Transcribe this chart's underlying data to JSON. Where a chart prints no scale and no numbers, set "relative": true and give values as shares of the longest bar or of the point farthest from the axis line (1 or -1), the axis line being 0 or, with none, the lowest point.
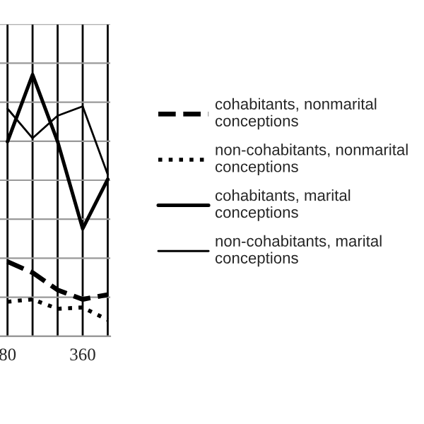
{
  "chart_data": {
    "type": "line",
    "relative": true,
    "categories": [
      "80",
      null,
      null,
      "360",
      null
    ],
    "series": [
      {
        "name": "cohabitants, nonmarital\nconceptions",
        "color": "#000000",
        "line_style": "dashed",
        "values": [
          0.285,
          0.243,
          0.177,
          0.141,
          0.159
        ]
      },
      {
        "name": "non-cohabitants, nonmarital\nconceptions",
        "color": "#000000",
        "line_style": "dotted",
        "values": [
          0.132,
          0.141,
          0.105,
          0.11,
          0.063
        ]
      },
      {
        "name": "cohabitants, marital\nconceptions",
        "color": "#000000",
        "line_style": "solid",
        "values": [
          0.744,
          1.0,
          0.744,
          0.411,
          0.6
        ]
      },
      {
        "name": "non-cohabitants, marital\nconceptions",
        "color": "#000000",
        "line_style": "solid",
        "values": [
          0.87,
          0.757,
          0.843,
          0.879,
          0.618
        ]
      }
    ],
    "grid": true,
    "legend": "right",
    "marker": "none"
  }
}
